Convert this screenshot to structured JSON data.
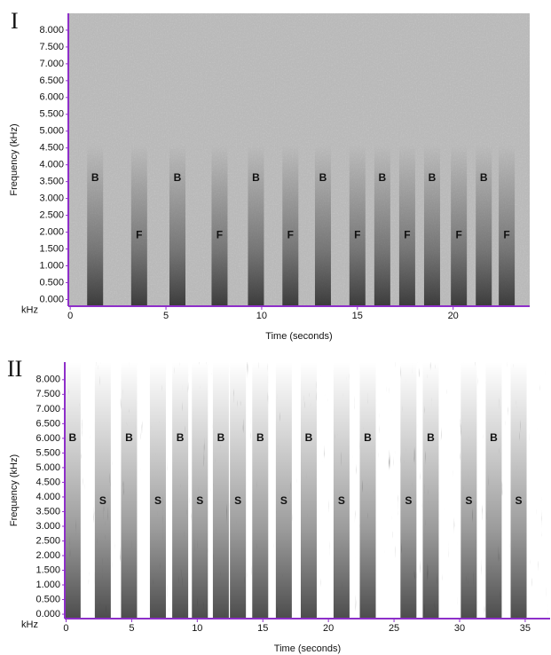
{
  "chart_data": [
    {
      "type": "spectrogram",
      "panel_label": "I",
      "xlabel": "Time (seconds)",
      "ylabel": "Frequency (kHz)",
      "yunit": "kHz",
      "xlim": [
        -0.1,
        24
      ],
      "ylim": [
        -0.2,
        8.5
      ],
      "xticks": [
        0,
        5,
        10,
        15,
        20
      ],
      "yticks": [
        {
          "value": 0,
          "label": "0.000"
        },
        {
          "value": 0.5,
          "label": "0.500"
        },
        {
          "value": 1,
          "label": "1.000"
        },
        {
          "value": 1.5,
          "label": "1.500"
        },
        {
          "value": 2,
          "label": "2.000"
        },
        {
          "value": 2.5,
          "label": "2.500"
        },
        {
          "value": 3,
          "label": "3.000"
        },
        {
          "value": 3.5,
          "label": "3.500"
        },
        {
          "value": 4,
          "label": "4.000"
        },
        {
          "value": 4.5,
          "label": "4.500"
        },
        {
          "value": 5,
          "label": "5.000"
        },
        {
          "value": 5.5,
          "label": "5.500"
        },
        {
          "value": 6,
          "label": "6.000"
        },
        {
          "value": 6.5,
          "label": "6.500"
        },
        {
          "value": 7,
          "label": "7.000"
        },
        {
          "value": 7.5,
          "label": "7.500"
        },
        {
          "value": 8,
          "label": "8.000"
        }
      ],
      "annotations": [
        {
          "label": "B",
          "x": 1.3,
          "y": 3.6
        },
        {
          "label": "B",
          "x": 5.6,
          "y": 3.6
        },
        {
          "label": "B",
          "x": 9.7,
          "y": 3.6
        },
        {
          "label": "B",
          "x": 13.2,
          "y": 3.6
        },
        {
          "label": "B",
          "x": 16.3,
          "y": 3.6
        },
        {
          "label": "B",
          "x": 18.9,
          "y": 3.6
        },
        {
          "label": "B",
          "x": 21.6,
          "y": 3.6
        },
        {
          "label": "F",
          "x": 3.6,
          "y": 1.9
        },
        {
          "label": "F",
          "x": 7.8,
          "y": 1.9
        },
        {
          "label": "F",
          "x": 11.5,
          "y": 1.9
        },
        {
          "label": "F",
          "x": 15.0,
          "y": 1.9
        },
        {
          "label": "F",
          "x": 17.6,
          "y": 1.9
        },
        {
          "label": "F",
          "x": 20.3,
          "y": 1.9
        },
        {
          "label": "F",
          "x": 22.8,
          "y": 1.9
        }
      ]
    },
    {
      "type": "spectrogram",
      "panel_label": "II",
      "xlabel": "Time (seconds)",
      "ylabel": "Frequency (kHz)",
      "yunit": "kHz",
      "xlim": [
        -0.1,
        36.9
      ],
      "ylim": [
        -0.15,
        8.6
      ],
      "xticks": [
        0,
        5,
        10,
        15,
        20,
        25,
        30,
        35
      ],
      "yticks": [
        {
          "value": 0,
          "label": "0.000"
        },
        {
          "value": 0.5,
          "label": "0.500"
        },
        {
          "value": 1,
          "label": "1.000"
        },
        {
          "value": 1.5,
          "label": "1.500"
        },
        {
          "value": 2,
          "label": "2.000"
        },
        {
          "value": 2.5,
          "label": "2.500"
        },
        {
          "value": 3,
          "label": "3.000"
        },
        {
          "value": 3.5,
          "label": "3.500"
        },
        {
          "value": 4,
          "label": "4.000"
        },
        {
          "value": 4.5,
          "label": "4.500"
        },
        {
          "value": 5,
          "label": "5.000"
        },
        {
          "value": 5.5,
          "label": "5.500"
        },
        {
          "value": 6,
          "label": "6.000"
        },
        {
          "value": 6.5,
          "label": "6.500"
        },
        {
          "value": 7,
          "label": "7.000"
        },
        {
          "value": 7.5,
          "label": "7.500"
        },
        {
          "value": 8,
          "label": "8.000"
        }
      ],
      "annotations": [
        {
          "label": "B",
          "x": 0.5,
          "y": 6.0
        },
        {
          "label": "B",
          "x": 4.8,
          "y": 6.0
        },
        {
          "label": "B",
          "x": 8.7,
          "y": 6.0
        },
        {
          "label": "B",
          "x": 11.8,
          "y": 6.0
        },
        {
          "label": "B",
          "x": 14.8,
          "y": 6.0
        },
        {
          "label": "B",
          "x": 18.5,
          "y": 6.0
        },
        {
          "label": "B",
          "x": 23.0,
          "y": 6.0
        },
        {
          "label": "B",
          "x": 27.8,
          "y": 6.0
        },
        {
          "label": "B",
          "x": 32.6,
          "y": 6.0
        },
        {
          "label": "S",
          "x": 2.8,
          "y": 3.85
        },
        {
          "label": "S",
          "x": 7.0,
          "y": 3.85
        },
        {
          "label": "S",
          "x": 10.2,
          "y": 3.85
        },
        {
          "label": "S",
          "x": 13.1,
          "y": 3.85
        },
        {
          "label": "S",
          "x": 16.6,
          "y": 3.85
        },
        {
          "label": "S",
          "x": 21.0,
          "y": 3.85
        },
        {
          "label": "S",
          "x": 26.1,
          "y": 3.85
        },
        {
          "label": "S",
          "x": 30.7,
          "y": 3.85
        },
        {
          "label": "S",
          "x": 34.5,
          "y": 3.85
        }
      ]
    }
  ]
}
